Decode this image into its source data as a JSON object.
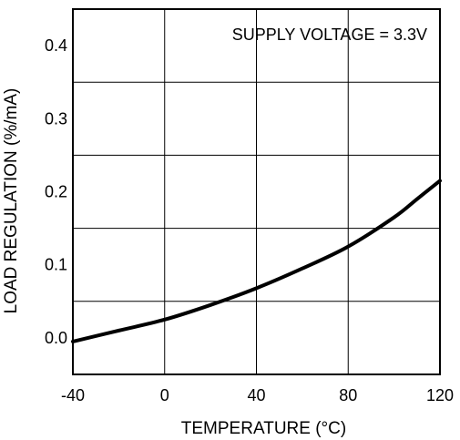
{
  "chart_data": {
    "type": "line",
    "xlabel": "TEMPERATURE (°C)",
    "ylabel": "LOAD REGULATION (%/mA)",
    "annotation": "SUPPLY VOLTAGE = 3.3V",
    "xlim": [
      -40,
      120
    ],
    "ylim": [
      -0.05,
      0.45
    ],
    "grid": true,
    "x_ticks": [
      -40,
      0,
      40,
      80,
      120
    ],
    "x_tick_labels": [
      "-40",
      "0",
      "40",
      "80",
      "120"
    ],
    "y_ticks": [
      0.0,
      0.1,
      0.2,
      0.3,
      0.4
    ],
    "y_tick_labels": [
      "0.0",
      "0.1",
      "0.2",
      "0.3",
      "0.4"
    ],
    "series": [
      {
        "color": "#000000",
        "x": [
          -40,
          -20,
          0,
          20,
          40,
          60,
          80,
          100,
          110,
          120
        ],
        "y": [
          -0.005,
          0.01,
          0.025,
          0.045,
          0.068,
          0.095,
          0.125,
          0.165,
          0.19,
          0.215
        ]
      }
    ]
  }
}
